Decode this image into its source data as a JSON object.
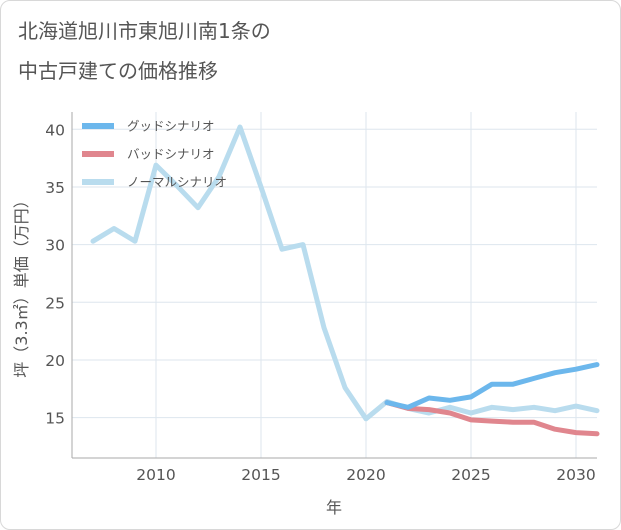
{
  "chart_data": {
    "type": "line",
    "title": "北海道旭川市東旭川南1条の中古戸建ての価格推移",
    "title_lines": [
      "北海道旭川市東旭川南1条の",
      "中古戸建ての価格推移"
    ],
    "xlabel": "年",
    "ylabel": "坪（3.3㎡）単価（万円）",
    "xlim": [
      2006,
      2031
    ],
    "ylim": [
      11.5,
      41.5
    ],
    "xticks": [
      2010,
      2015,
      2020,
      2025,
      2030
    ],
    "yticks": [
      15,
      20,
      25,
      30,
      35,
      40
    ],
    "grid": true,
    "legend_position": "top-left",
    "series": [
      {
        "name": "グッドシナリオ",
        "color": "#6cb7ec",
        "x": [
          2021,
          2022,
          2023,
          2024,
          2025,
          2026,
          2027,
          2028,
          2029,
          2030,
          2031
        ],
        "values": [
          16.3,
          15.9,
          16.7,
          16.5,
          16.8,
          17.9,
          17.9,
          18.4,
          18.9,
          19.2,
          19.6
        ]
      },
      {
        "name": "バッドシナリオ",
        "color": "#e0868e",
        "x": [
          2021,
          2022,
          2023,
          2024,
          2025,
          2026,
          2027,
          2028,
          2029,
          2030,
          2031
        ],
        "values": [
          16.3,
          15.8,
          15.7,
          15.4,
          14.8,
          14.7,
          14.6,
          14.6,
          14.0,
          13.7,
          13.6
        ]
      },
      {
        "name": "ノーマルシナリオ",
        "color": "#b9dcee",
        "x": [
          2007,
          2008,
          2009,
          2010,
          2011,
          2012,
          2013,
          2014,
          2015,
          2016,
          2017,
          2018,
          2019,
          2020,
          2021,
          2022,
          2023,
          2024,
          2025,
          2026,
          2027,
          2028,
          2029,
          2030,
          2031
        ],
        "values": [
          30.3,
          31.4,
          30.3,
          36.9,
          35.1,
          33.2,
          35.9,
          40.2,
          35.0,
          29.6,
          30.0,
          22.8,
          17.6,
          14.9,
          16.4,
          15.8,
          15.4,
          15.9,
          15.4,
          15.9,
          15.7,
          15.9,
          15.6,
          16.0,
          15.6
        ]
      }
    ]
  }
}
